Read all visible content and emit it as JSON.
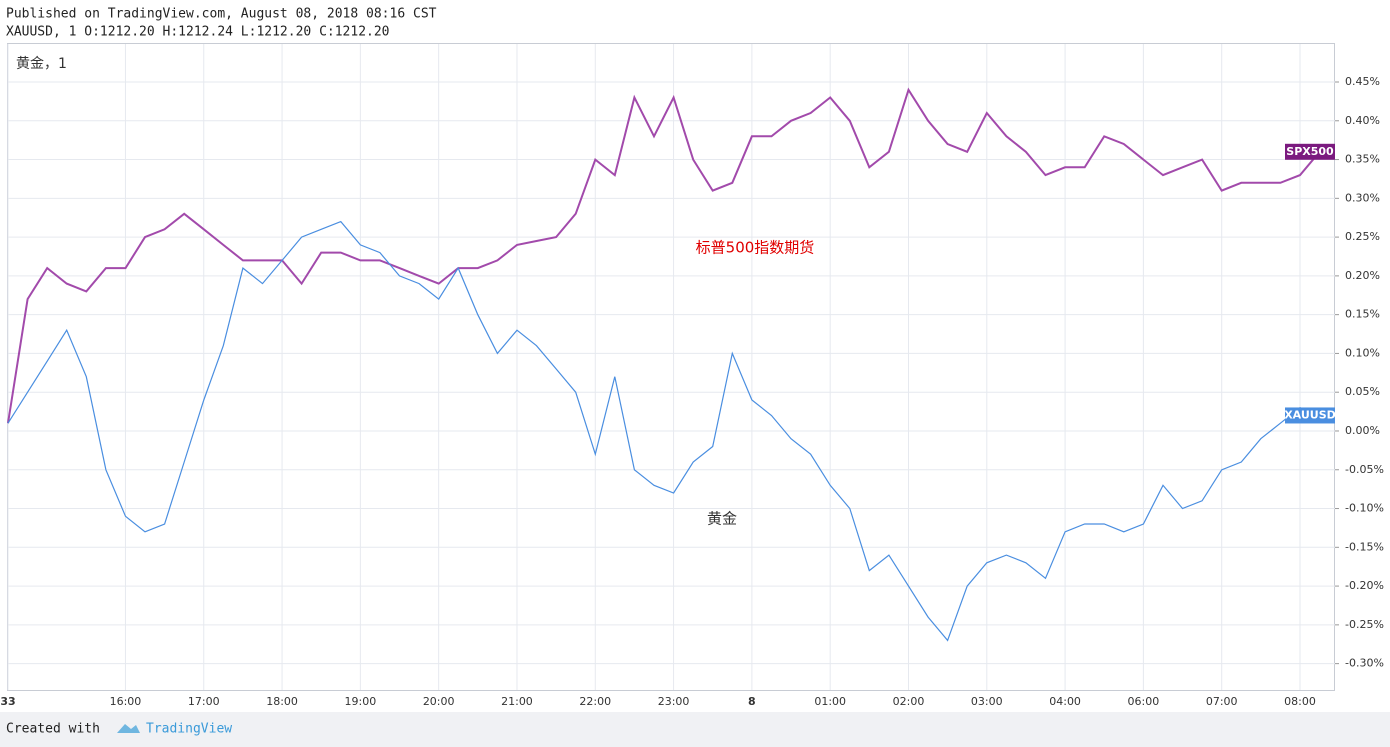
{
  "header": {
    "published": "Published on TradingView.com, August 08, 2018 08:16 CST",
    "symbol_line": "XAUUSD, 1 O:1212.20 H:1212.24 L:1212.20 C:1212.20"
  },
  "footer": {
    "created": "Created with",
    "brand": "TradingView"
  },
  "chart_data": {
    "type": "line",
    "legend_label": "黄金，1",
    "annotations": [
      {
        "text": "标普500指数期货",
        "color": "#e00000"
      },
      {
        "text": "黄金",
        "color": "#333333"
      }
    ],
    "categories": [
      "33",
      null,
      null,
      null,
      null,
      null,
      "16:00",
      null,
      null,
      null,
      "17:00",
      null,
      null,
      null,
      "18:00",
      null,
      null,
      null,
      "19:00",
      null,
      null,
      null,
      "20:00",
      null,
      null,
      null,
      "21:00",
      null,
      null,
      null,
      "22:00",
      null,
      null,
      null,
      "23:00",
      null,
      null,
      null,
      "8",
      null,
      null,
      null,
      "01:00",
      null,
      null,
      null,
      "02:00",
      null,
      null,
      null,
      "03:00",
      null,
      null,
      null,
      "04:00",
      null,
      null,
      null,
      "06:00",
      null,
      null,
      null,
      "07:00",
      null,
      null,
      null,
      "08:00",
      null
    ],
    "series": [
      {
        "name": "SPX500",
        "color": "#a24aab",
        "label_color": "#7b1a7f",
        "values": [
          0.01,
          0.17,
          0.21,
          0.19,
          0.18,
          0.21,
          0.21,
          0.25,
          0.26,
          0.28,
          0.26,
          0.24,
          0.22,
          0.22,
          0.22,
          0.19,
          0.23,
          0.23,
          0.22,
          0.22,
          0.21,
          0.2,
          0.19,
          0.21,
          0.21,
          0.22,
          0.24,
          0.245,
          0.25,
          0.28,
          0.35,
          0.33,
          0.43,
          0.38,
          0.43,
          0.35,
          0.31,
          0.32,
          0.38,
          0.38,
          0.4,
          0.41,
          0.43,
          0.4,
          0.34,
          0.36,
          0.44,
          0.4,
          0.37,
          0.36,
          0.41,
          0.38,
          0.36,
          0.33,
          0.34,
          0.34,
          0.38,
          0.37,
          0.35,
          0.33,
          0.34,
          0.35,
          0.31,
          0.32,
          0.32,
          0.32,
          0.33,
          0.36
        ]
      },
      {
        "name": "XAUUSD",
        "color": "#4a8ee0",
        "label_color": "#4a8ee0",
        "values": [
          0.01,
          0.05,
          0.09,
          0.13,
          0.07,
          -0.05,
          -0.11,
          -0.13,
          -0.12,
          -0.04,
          0.04,
          0.11,
          0.21,
          0.19,
          0.22,
          0.25,
          0.26,
          0.27,
          0.24,
          0.23,
          0.2,
          0.19,
          0.17,
          0.21,
          0.15,
          0.1,
          0.13,
          0.11,
          0.08,
          0.05,
          -0.03,
          0.07,
          -0.05,
          -0.07,
          -0.08,
          -0.04,
          -0.02,
          0.1,
          0.04,
          0.02,
          -0.01,
          -0.03,
          -0.07,
          -0.1,
          -0.18,
          -0.16,
          -0.2,
          -0.24,
          -0.27,
          -0.2,
          -0.17,
          -0.16,
          -0.17,
          -0.19,
          -0.13,
          -0.12,
          -0.12,
          -0.13,
          -0.12,
          -0.07,
          -0.1,
          -0.09,
          -0.05,
          -0.04,
          -0.01,
          0.01,
          0.03,
          0.02
        ]
      }
    ],
    "ylim": [
      -0.334,
      0.499
    ],
    "yticks": [
      {
        "value": -0.3,
        "label": "-0.30%"
      },
      {
        "value": -0.25,
        "label": "-0.25%"
      },
      {
        "value": -0.2,
        "label": "-0.20%"
      },
      {
        "value": -0.15,
        "label": "-0.15%"
      },
      {
        "value": -0.1,
        "label": "-0.10%"
      },
      {
        "value": -0.05,
        "label": "-0.05%"
      },
      {
        "value": 0,
        "label": "0.00%"
      },
      {
        "value": 0.05,
        "label": "0.05%"
      },
      {
        "value": 0.1,
        "label": "0.10%"
      },
      {
        "value": 0.15,
        "label": "0.15%"
      },
      {
        "value": 0.2,
        "label": "0.20%"
      },
      {
        "value": 0.25,
        "label": "0.25%"
      },
      {
        "value": 0.3,
        "label": "0.30%"
      },
      {
        "value": 0.35,
        "label": "0.35%"
      },
      {
        "value": 0.4,
        "label": "0.40%"
      },
      {
        "value": 0.45,
        "label": "0.45%"
      }
    ],
    "grid": true,
    "y_axis_side": "right"
  }
}
